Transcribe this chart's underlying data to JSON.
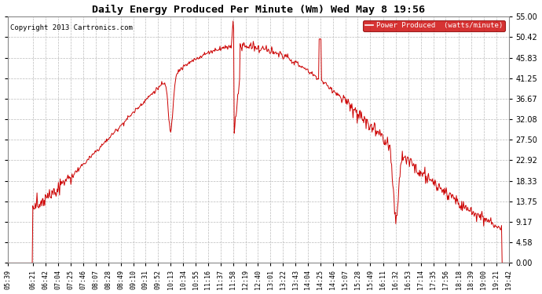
{
  "title": "Daily Energy Produced Per Minute (Wm) Wed May 8 19:56",
  "copyright": "Copyright 2013 Cartronics.com",
  "legend_label": "Power Produced  (watts/minute)",
  "legend_bg": "#cc0000",
  "legend_fg": "#ffffff",
  "line_color": "#cc0000",
  "bg_color": "#ffffff",
  "grid_color": "#bbbbbb",
  "yticks": [
    0.0,
    4.58,
    9.17,
    13.75,
    18.33,
    22.92,
    27.5,
    32.08,
    36.67,
    41.25,
    45.83,
    50.42,
    55.0
  ],
  "ylim": [
    0.0,
    55.0
  ],
  "xtick_labels": [
    "05:39",
    "06:21",
    "06:42",
    "07:04",
    "07:25",
    "07:46",
    "08:07",
    "08:28",
    "08:49",
    "09:10",
    "09:31",
    "09:52",
    "10:13",
    "10:34",
    "10:55",
    "11:16",
    "11:37",
    "11:58",
    "12:19",
    "12:40",
    "13:01",
    "13:22",
    "13:43",
    "14:04",
    "14:25",
    "14:46",
    "15:07",
    "15:28",
    "15:49",
    "16:11",
    "16:32",
    "16:53",
    "17:14",
    "17:35",
    "17:56",
    "18:18",
    "18:39",
    "19:00",
    "19:21",
    "19:42"
  ]
}
